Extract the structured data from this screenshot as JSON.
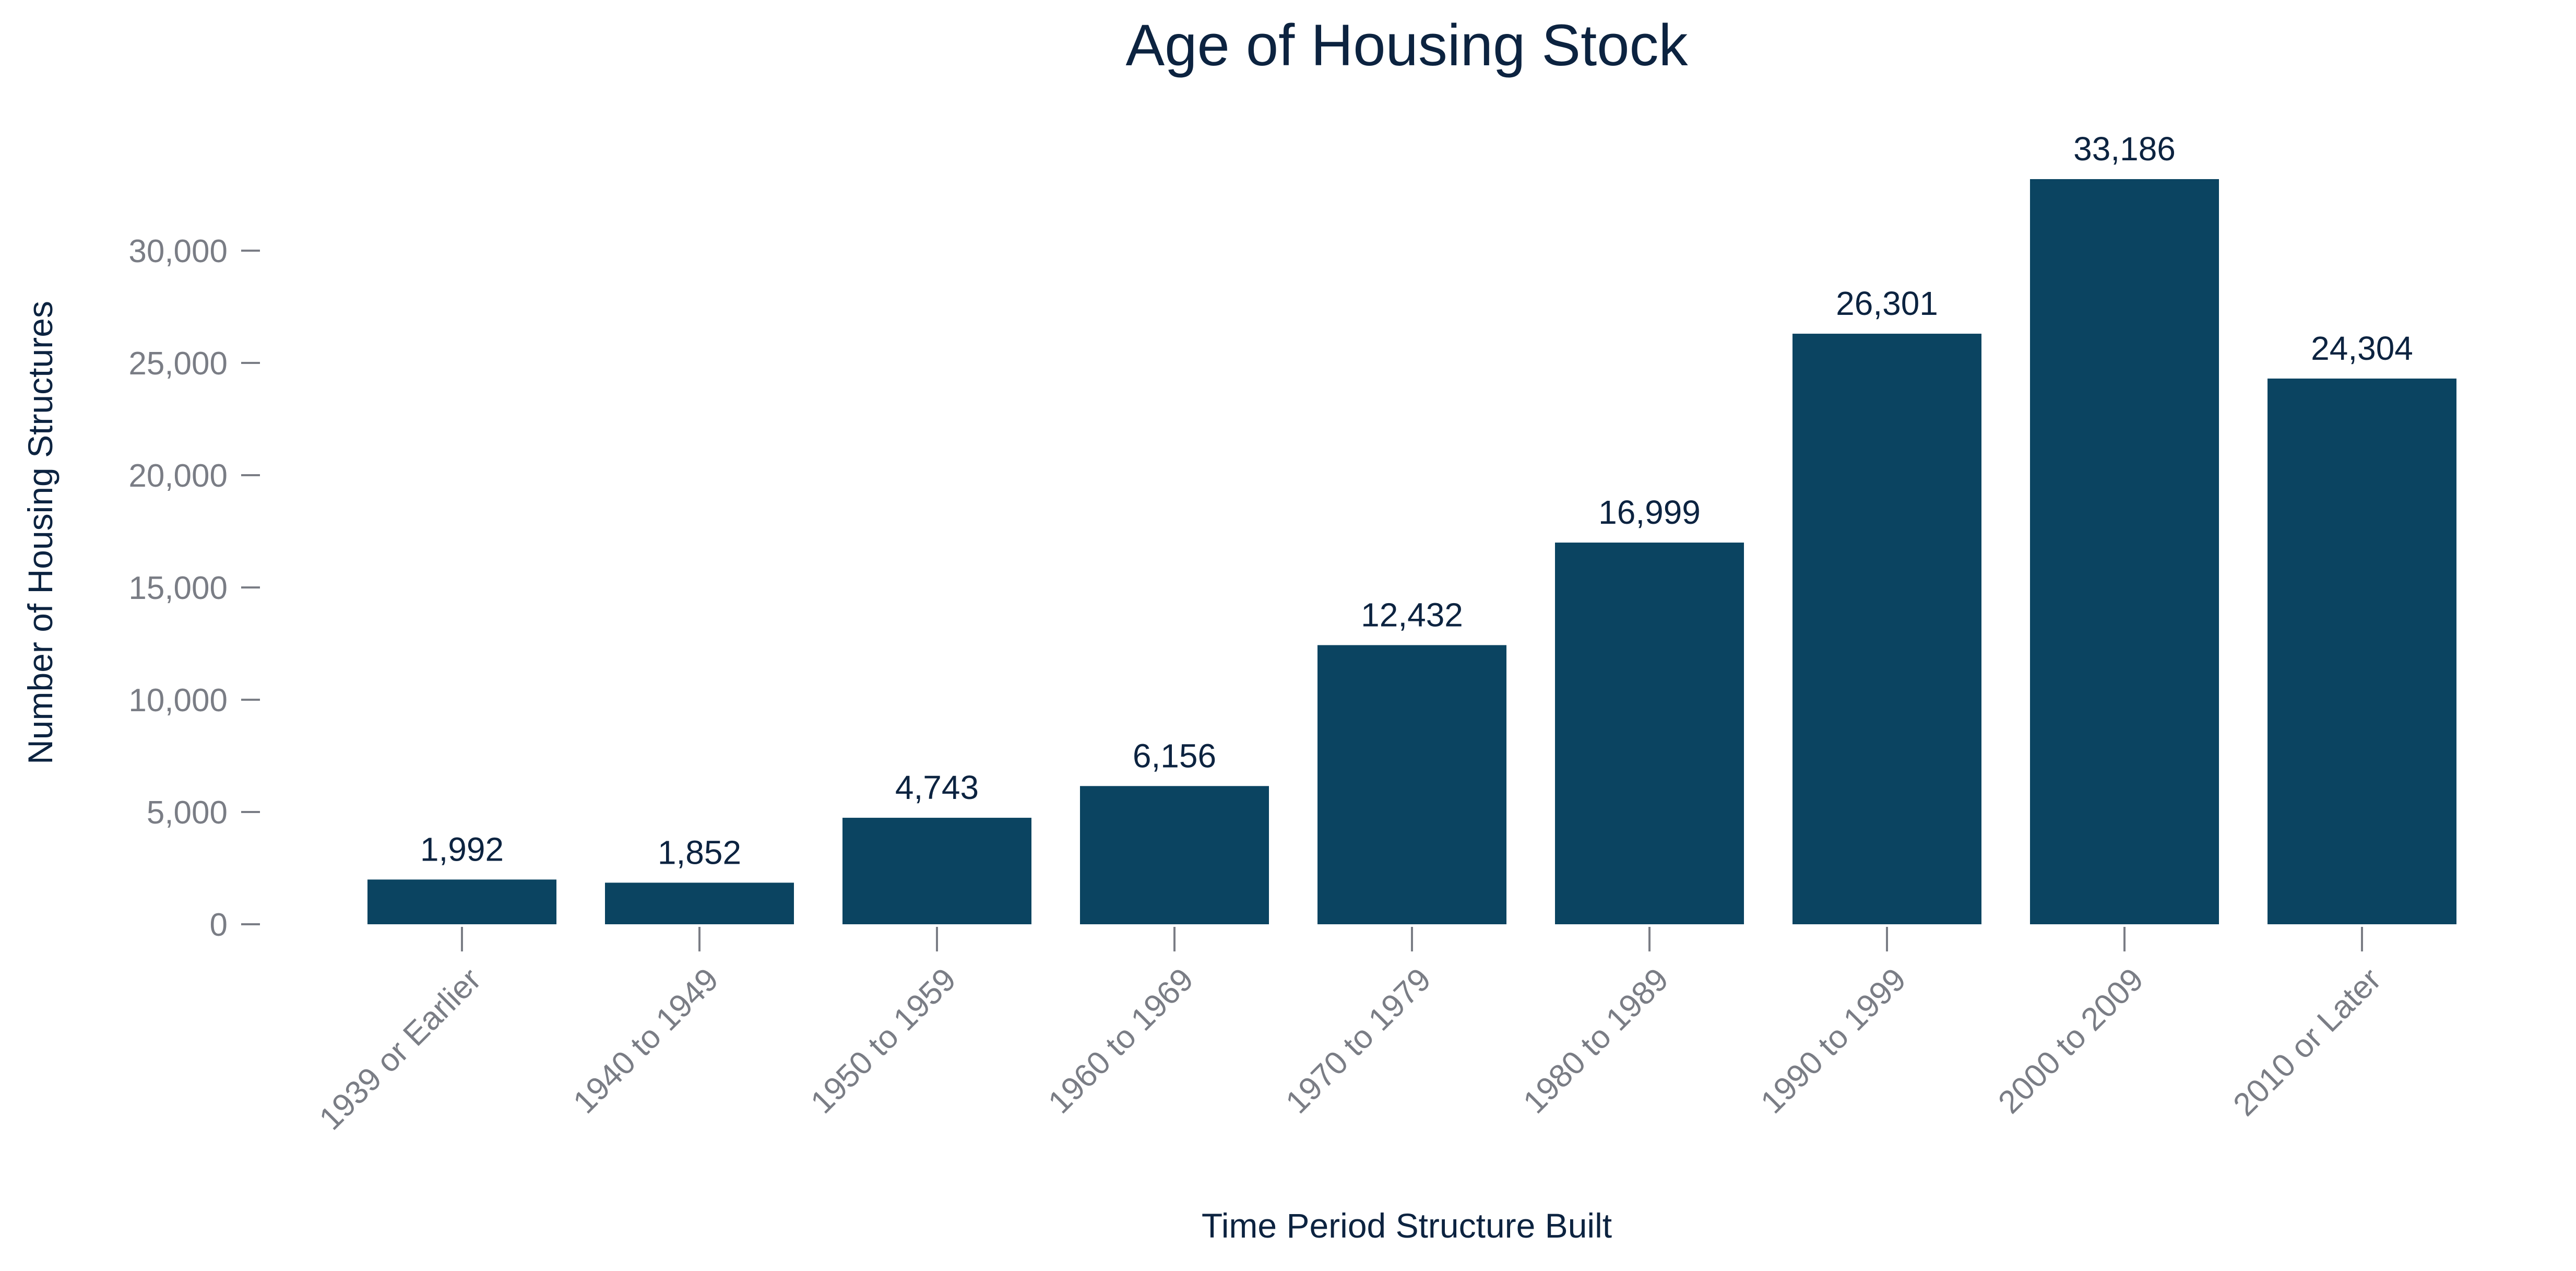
{
  "chart_data": {
    "type": "bar",
    "title": "Age of Housing Stock",
    "xlabel": "Time Period Structure Built",
    "ylabel": "Number of Housing Structures",
    "categories": [
      "1939 or Earlier",
      "1940 to 1949",
      "1950 to 1959",
      "1960 to 1969",
      "1970 to 1979",
      "1980 to 1989",
      "1990 to 1999",
      "2000 to 2009",
      "2010 or Later"
    ],
    "values": [
      1992,
      1852,
      4743,
      6156,
      12432,
      16999,
      26301,
      33186,
      24304
    ],
    "data_labels": [
      "1,992",
      "1,852",
      "4,743",
      "6,156",
      "12,432",
      "16,999",
      "26,301",
      "33,186",
      "24,304"
    ],
    "y_ticks": [
      0,
      5000,
      10000,
      15000,
      20000,
      25000,
      30000
    ],
    "y_tick_labels": [
      "0",
      "5,000",
      "10,000",
      "15,000",
      "20,000",
      "25,000",
      "30,000"
    ],
    "ylim": [
      0,
      33186
    ],
    "grid": false,
    "legend": "none",
    "bar_color": "#0b4461"
  }
}
